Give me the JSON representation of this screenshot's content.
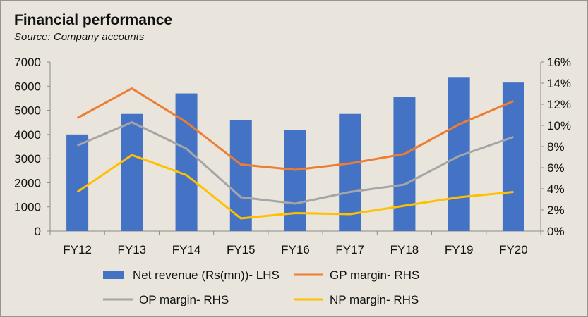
{
  "chart_data": {
    "type": "bar",
    "title": "Financial performance",
    "subtitle": "Source: Company accounts",
    "categories": [
      "FY12",
      "FY13",
      "FY14",
      "FY15",
      "FY16",
      "FY17",
      "FY18",
      "FY19",
      "FY20"
    ],
    "series": [
      {
        "name": "Net revenue (Rs(mn))- LHS",
        "type": "bar",
        "axis": "left",
        "color": "#4472c4",
        "values": [
          4000,
          4850,
          5700,
          4600,
          4200,
          4850,
          5550,
          6350,
          6150
        ]
      },
      {
        "name": "GP margin- RHS",
        "type": "line",
        "axis": "right",
        "color": "#ed7d31",
        "values": [
          10.7,
          13.5,
          10.3,
          6.3,
          5.8,
          6.4,
          7.3,
          10.1,
          12.3
        ]
      },
      {
        "name": "OP margin- RHS",
        "type": "line",
        "axis": "right",
        "color": "#a5a5a5",
        "values": [
          8.1,
          10.3,
          7.8,
          3.2,
          2.6,
          3.7,
          4.4,
          7.1,
          8.9
        ]
      },
      {
        "name": "NP margin- RHS",
        "type": "line",
        "axis": "right",
        "color": "#ffc000",
        "values": [
          3.7,
          7.2,
          5.3,
          1.2,
          1.7,
          1.6,
          2.4,
          3.2,
          3.7
        ]
      }
    ],
    "y_left": {
      "min": 0,
      "max": 7000,
      "ticks": [
        "0",
        "1000",
        "2000",
        "3000",
        "4000",
        "5000",
        "6000",
        "7000"
      ]
    },
    "y_right": {
      "min": 0,
      "max": 16,
      "ticks": [
        "0%",
        "2%",
        "4%",
        "6%",
        "8%",
        "10%",
        "12%",
        "14%",
        "16%"
      ]
    },
    "grid": false,
    "legend": "bottom"
  }
}
